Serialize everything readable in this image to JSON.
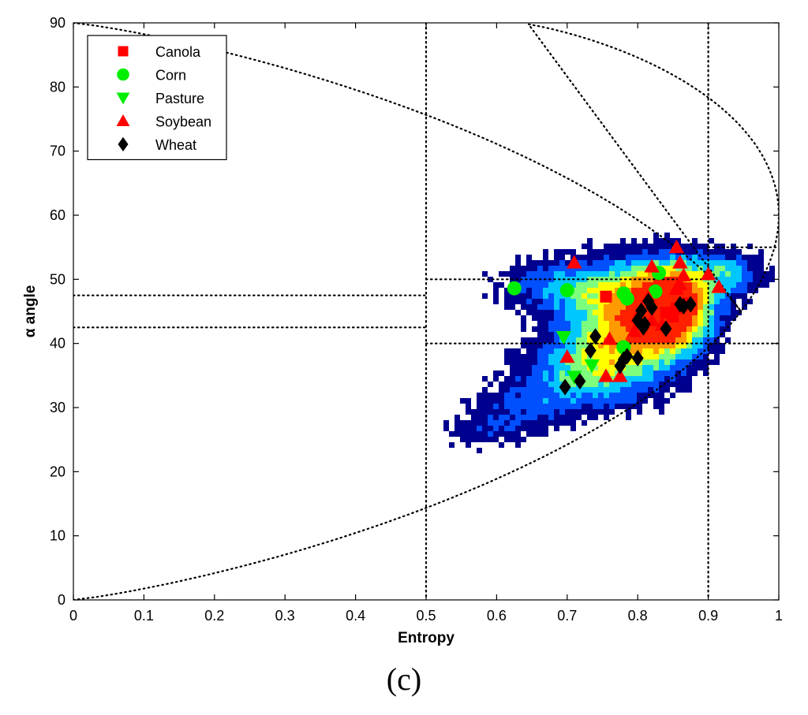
{
  "panel_label": "(c)",
  "chart_data": {
    "type": "scatter",
    "title": "",
    "xlabel": "Entropy",
    "ylabel": "α angle",
    "xlim": [
      0,
      1
    ],
    "ylim": [
      0,
      90
    ],
    "xticks": [
      0,
      0.1,
      0.2,
      0.3,
      0.4,
      0.5,
      0.6,
      0.7,
      0.8,
      0.9,
      1
    ],
    "xtick_labels": [
      "0",
      "0.1",
      "0.2",
      "0.3",
      "0.4",
      "0.5",
      "0.6",
      "0.7",
      "0.8",
      "0.9",
      "1"
    ],
    "yticks": [
      0,
      10,
      20,
      30,
      40,
      50,
      60,
      70,
      80,
      90
    ],
    "ytick_labels": [
      "0",
      "10",
      "20",
      "30",
      "40",
      "50",
      "60",
      "70",
      "80",
      "90"
    ],
    "grid": false,
    "legend_position": "top-left",
    "series": [
      {
        "name": "Canola",
        "marker": "square",
        "color": "#ff0000",
        "points": [
          [
            0.755,
            47.3
          ],
          [
            0.84,
            44.8
          ],
          [
            0.855,
            45.5
          ],
          [
            0.865,
            46.2
          ],
          [
            0.85,
            44.2
          ]
        ]
      },
      {
        "name": "Corn",
        "marker": "circle",
        "color": "#00ee00",
        "points": [
          [
            0.625,
            48.6
          ],
          [
            0.7,
            48.3
          ],
          [
            0.78,
            47.8
          ],
          [
            0.785,
            47.0
          ],
          [
            0.825,
            48.1
          ],
          [
            0.83,
            51.0
          ],
          [
            0.78,
            39.4
          ]
        ]
      },
      {
        "name": "Pasture",
        "marker": "triangle-down",
        "color": "#00ee00",
        "points": [
          [
            0.695,
            41.0
          ],
          [
            0.735,
            36.6
          ],
          [
            0.71,
            34.8
          ],
          [
            0.78,
            38.8
          ]
        ]
      },
      {
        "name": "Soybean",
        "marker": "triangle-up",
        "color": "#ff0000",
        "points": [
          [
            0.71,
            52.6
          ],
          [
            0.82,
            52.0
          ],
          [
            0.855,
            55.0
          ],
          [
            0.86,
            52.6
          ],
          [
            0.865,
            50.6
          ],
          [
            0.86,
            49.2
          ],
          [
            0.9,
            50.8
          ],
          [
            0.915,
            48.8
          ],
          [
            0.855,
            48.5
          ],
          [
            0.815,
            47.2
          ],
          [
            0.8,
            44.2
          ],
          [
            0.795,
            41.9
          ],
          [
            0.82,
            43.6
          ],
          [
            0.835,
            42.9
          ],
          [
            0.86,
            46.0
          ],
          [
            0.7,
            37.9
          ],
          [
            0.76,
            40.7
          ],
          [
            0.755,
            34.9
          ],
          [
            0.775,
            34.9
          ]
        ]
      },
      {
        "name": "Wheat",
        "marker": "diamond",
        "color": "#000000",
        "points": [
          [
            0.697,
            33.2
          ],
          [
            0.718,
            34.1
          ],
          [
            0.733,
            38.9
          ],
          [
            0.74,
            41.1
          ],
          [
            0.775,
            36.5
          ],
          [
            0.78,
            37.5
          ],
          [
            0.785,
            38.0
          ],
          [
            0.8,
            37.7
          ],
          [
            0.805,
            45.1
          ],
          [
            0.815,
            46.6
          ],
          [
            0.82,
            45.6
          ],
          [
            0.8,
            43.6
          ],
          [
            0.808,
            42.5
          ],
          [
            0.81,
            43.0
          ],
          [
            0.84,
            42.3
          ],
          [
            0.86,
            46.1
          ],
          [
            0.875,
            46.1
          ],
          [
            0.865,
            45.8
          ]
        ]
      }
    ],
    "boundaries": {
      "vertical_lines_x": [
        0.5,
        0.9
      ],
      "zone_lines": [
        {
          "y": 47.5,
          "from_x": 0,
          "to_x": 0.5
        },
        {
          "y": 42.5,
          "from_x": 0,
          "to_x": 0.5
        },
        {
          "y": 50,
          "from_x": 0.5,
          "to_x": 0.9
        },
        {
          "y": 40,
          "from_x": 0.5,
          "to_x": 1
        },
        {
          "y": 55,
          "from_x": 0.9,
          "to_x": 1
        }
      ],
      "feasible_region_curves": [
        "lower",
        "upper"
      ]
    },
    "density_background": {
      "type": "heatmap",
      "colormap": [
        "#00008f",
        "#0050ff",
        "#00c8ff",
        "#7dff7d",
        "#ffff00",
        "#ff9a00",
        "#ff2000"
      ],
      "clusters": [
        {
          "cx": 0.85,
          "cy": 46.0,
          "sx": 0.04,
          "sy": 4.5,
          "w": 1.0
        },
        {
          "cx": 0.79,
          "cy": 43.0,
          "sx": 0.06,
          "sy": 6.0,
          "w": 0.75
        },
        {
          "cx": 0.72,
          "cy": 35.5,
          "sx": 0.06,
          "sy": 4.0,
          "w": 0.45
        },
        {
          "cx": 0.7,
          "cy": 49.0,
          "sx": 0.07,
          "sy": 3.0,
          "w": 0.35
        },
        {
          "cx": 0.63,
          "cy": 29.5,
          "sx": 0.05,
          "sy": 3.0,
          "w": 0.25
        },
        {
          "cx": 0.93,
          "cy": 51.0,
          "sx": 0.035,
          "sy": 2.5,
          "w": 0.4
        },
        {
          "cx": 0.57,
          "cy": 26.0,
          "sx": 0.035,
          "sy": 2.0,
          "w": 0.15
        }
      ]
    }
  }
}
